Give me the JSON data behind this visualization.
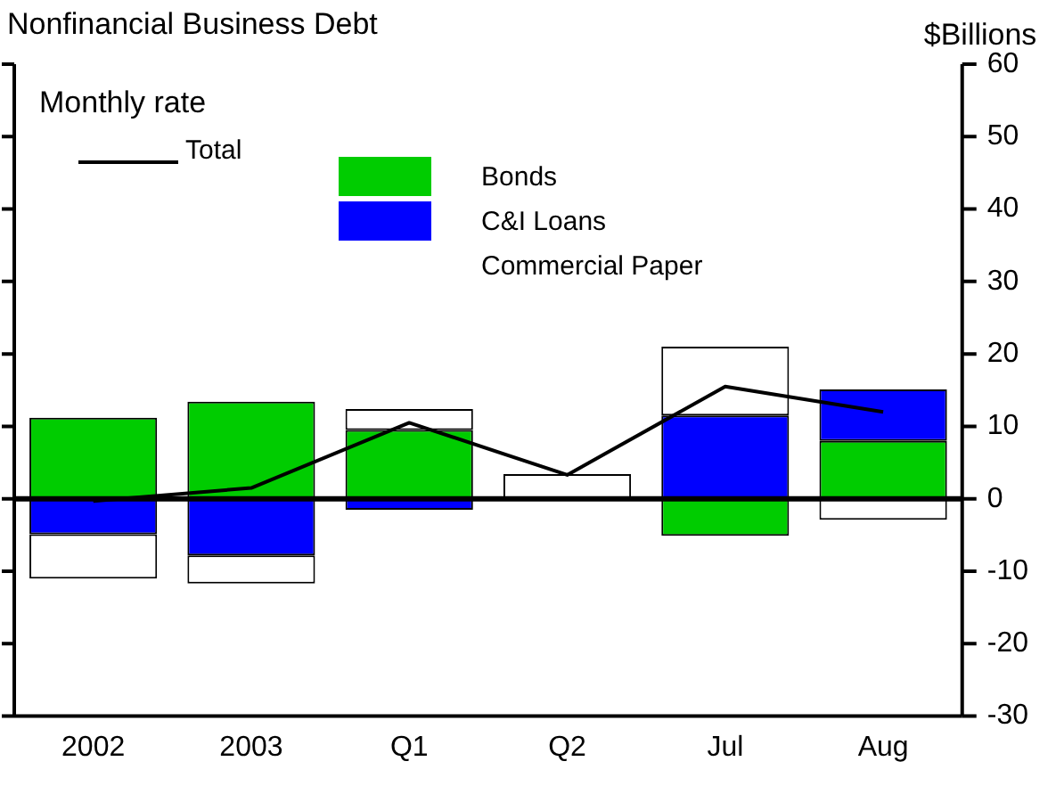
{
  "chart_data": {
    "type": "bar",
    "title": "Nonfinancial Business Debt",
    "ylabel": "$Billions",
    "annotations": [
      "Monthly rate"
    ],
    "categories": [
      "2002",
      "2003",
      "Q1",
      "Q2",
      "Jul",
      "Aug"
    ],
    "stacked": true,
    "ref_lines": [
      {
        "axis": "y",
        "value": 0,
        "color": "#000000"
      }
    ],
    "legend": "top left",
    "grid": false,
    "ylim": [
      -30,
      60
    ],
    "yticks": [
      -30,
      -20,
      -10,
      0,
      10,
      20,
      30,
      40,
      50,
      60
    ],
    "series": [
      {
        "name": "Bonds",
        "color": "#00cc00",
        "values": [
          11.2,
          13.4,
          9.5,
          0,
          -5.1,
          8
        ]
      },
      {
        "name": "C&I Loans",
        "color": "#0000ff",
        "values": [
          -4.9,
          -7.8,
          -1.5,
          0,
          11.5,
          7.1
        ]
      },
      {
        "name": "Commercial Paper",
        "color": "#ffffff",
        "values": [
          -6.1,
          -3.9,
          2.9,
          3.4,
          9.5,
          -2.9
        ]
      },
      {
        "name": "Total",
        "type": "line",
        "color": "#000000",
        "values": [
          -0.3,
          1.5,
          10.5,
          3.3,
          15.5,
          12
        ]
      }
    ]
  }
}
